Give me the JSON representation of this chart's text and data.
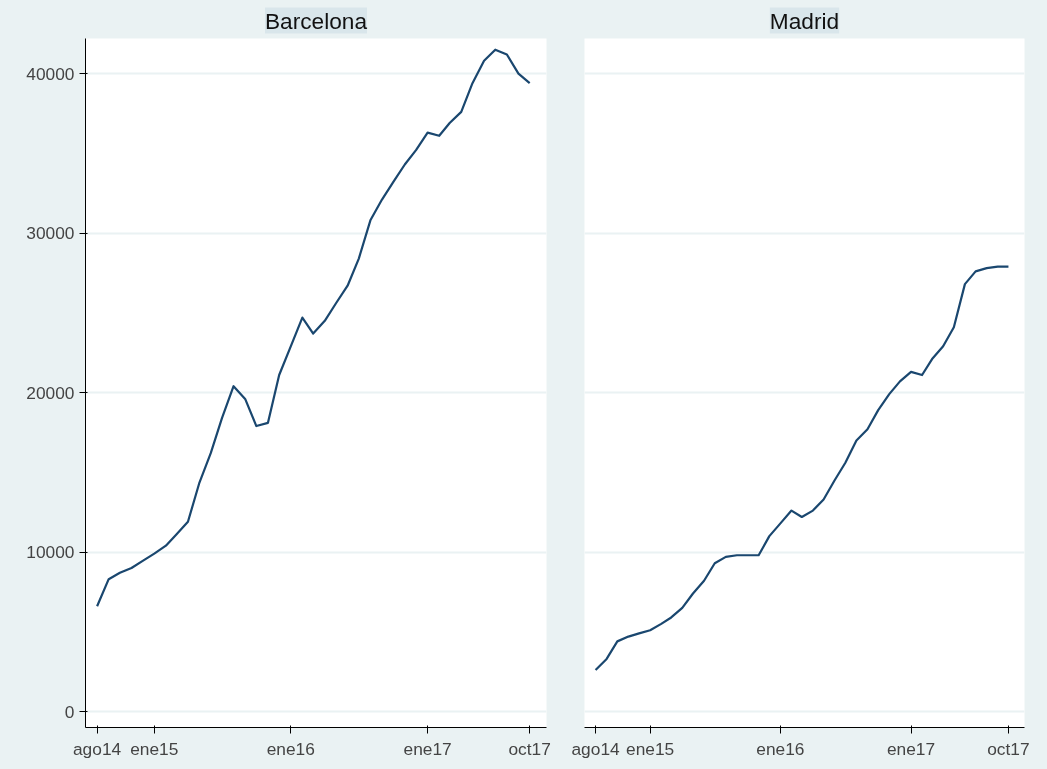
{
  "chart_data": [
    {
      "type": "line",
      "title": "Barcelona",
      "x": [
        "2014-08",
        "2014-09",
        "2014-10",
        "2014-11",
        "2014-12",
        "2015-01",
        "2015-02",
        "2015-03",
        "2015-04",
        "2015-05",
        "2015-06",
        "2015-07",
        "2015-08",
        "2015-09",
        "2015-10",
        "2015-11",
        "2015-12",
        "2016-01",
        "2016-02",
        "2016-03",
        "2016-04",
        "2016-05",
        "2016-06",
        "2016-07",
        "2016-08",
        "2016-09",
        "2016-10",
        "2016-11",
        "2016-12",
        "2017-01",
        "2017-02",
        "2017-03",
        "2017-04",
        "2017-05",
        "2017-06",
        "2017-07",
        "2017-08",
        "2017-09",
        "2017-10"
      ],
      "series": [
        {
          "color": "#1a476f",
          "values": [
            6600,
            8300,
            8700,
            9000,
            9450,
            9900,
            10400,
            11100,
            11900,
            14300,
            16200,
            18400,
            20400,
            19600,
            17900,
            18100,
            21100,
            22900,
            24700,
            23700,
            24500,
            25600,
            26700,
            28400,
            30800,
            32100,
            33200,
            34300,
            35200,
            36300,
            36100,
            36900,
            37600,
            39400,
            40800,
            41500,
            41200,
            40000,
            39400
          ]
        }
      ],
      "xlim": [
        "2014-07-01",
        "2017-11-15"
      ],
      "xticks": [
        {
          "value": "2014-08",
          "label": "ago14"
        },
        {
          "value": "2015-01",
          "label": "ene15"
        },
        {
          "value": "2016-01",
          "label": "ene16"
        },
        {
          "value": "2017-01",
          "label": "ene17"
        },
        {
          "value": "2017-10",
          "label": "oct17"
        }
      ],
      "ylim": [
        -1000,
        42200
      ],
      "yticks": [
        0,
        10000,
        20000,
        30000,
        40000
      ],
      "grid": "y",
      "marker": "none",
      "line_style": "solid"
    },
    {
      "type": "line",
      "title": "Madrid",
      "x": [
        "2014-08",
        "2014-09",
        "2014-10",
        "2014-11",
        "2014-12",
        "2015-01",
        "2015-02",
        "2015-03",
        "2015-04",
        "2015-05",
        "2015-06",
        "2015-07",
        "2015-08",
        "2015-09",
        "2015-10",
        "2015-11",
        "2015-12",
        "2016-01",
        "2016-02",
        "2016-03",
        "2016-04",
        "2016-05",
        "2016-06",
        "2016-07",
        "2016-08",
        "2016-09",
        "2016-10",
        "2016-11",
        "2016-12",
        "2017-01",
        "2017-02",
        "2017-03",
        "2017-04",
        "2017-05",
        "2017-06",
        "2017-07",
        "2017-08",
        "2017-09",
        "2017-10"
      ],
      "series": [
        {
          "color": "#1a476f",
          "values": [
            2600,
            3300,
            4400,
            4700,
            4900,
            5100,
            5500,
            5900,
            6500,
            7400,
            8200,
            9300,
            9700,
            9800,
            9800,
            9800,
            11000,
            11800,
            12600,
            12200,
            12600,
            13300,
            14500,
            15600,
            17000,
            17700,
            18900,
            19900,
            20700,
            21300,
            21100,
            22100,
            22900,
            24100,
            26800,
            27600,
            27800,
            27900,
            27900
          ]
        }
      ],
      "xlim": [
        "2014-07-01",
        "2017-11-15"
      ],
      "xticks": [
        {
          "value": "2014-08",
          "label": "ago14"
        },
        {
          "value": "2015-01",
          "label": "ene15"
        },
        {
          "value": "2016-01",
          "label": "ene16"
        },
        {
          "value": "2017-01",
          "label": "ene17"
        },
        {
          "value": "2017-10",
          "label": "oct17"
        }
      ],
      "ylim": [
        -1000,
        42200
      ],
      "yticks": [
        0,
        10000,
        20000,
        30000,
        40000
      ],
      "grid": "y",
      "marker": "none",
      "line_style": "solid",
      "tick_labels": "x"
    }
  ]
}
